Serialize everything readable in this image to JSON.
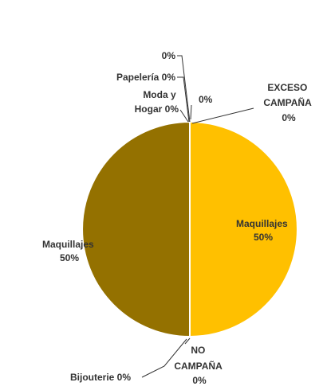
{
  "chart_data": {
    "type": "pie",
    "slices": [
      {
        "label": "Maquillajes",
        "value": 50,
        "display": "50%",
        "color": "#FFC000"
      },
      {
        "label": "NO CAMPAÑA",
        "value": 0,
        "display": "0%",
        "color": "#BF9000"
      },
      {
        "label": "Bijouterie",
        "value": 0,
        "display": "0%",
        "color": "#C9A227"
      },
      {
        "label": "Maquillajes",
        "value": 50,
        "display": "50%",
        "color": "#947100"
      },
      {
        "label": "Moda y Hogar",
        "value": 0,
        "display": "0%",
        "color": "#7F6000"
      },
      {
        "label": "Papelería",
        "value": 0,
        "display": "0%",
        "color": "#BF9000"
      },
      {
        "label": "",
        "value": 0,
        "display": "0%",
        "color": "#FFD966"
      },
      {
        "label": "",
        "value": 0,
        "display": "0%",
        "color": "#E6B800"
      },
      {
        "label": "EXCESO CAMPAÑA",
        "value": 0,
        "display": "0%",
        "color": "#FFE699"
      }
    ],
    "labels": {
      "right_maquillajes": [
        "Maquillajes",
        "50%"
      ],
      "left_maquillajes": [
        "Maquillajes",
        "50%"
      ],
      "no_campana": [
        "NO",
        "CAMPAÑA",
        "0%"
      ],
      "bijouterie": "Bijouterie 0%",
      "moda_hogar": [
        "Moda y",
        "Hogar 0%"
      ],
      "papeleria": "Papelería 0%",
      "top_zero": "0%",
      "mid_zero": "0%",
      "exceso": [
        "EXCESO",
        "CAMPAÑA",
        "0%"
      ]
    }
  }
}
